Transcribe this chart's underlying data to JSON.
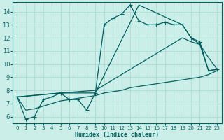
{
  "xlabel": "Humidex (Indice chaleur)",
  "bg_color": "#cceee8",
  "grid_color": "#b0ddd8",
  "line_color": "#006060",
  "xlim": [
    -0.5,
    23.5
  ],
  "ylim": [
    5.5,
    14.7
  ],
  "xticks": [
    0,
    1,
    2,
    3,
    4,
    5,
    6,
    7,
    8,
    9,
    10,
    11,
    12,
    13,
    14,
    15,
    16,
    17,
    18,
    19,
    20,
    21,
    22,
    23
  ],
  "yticks": [
    6,
    7,
    8,
    9,
    10,
    11,
    12,
    13,
    14
  ],
  "series1_x": [
    0,
    1,
    2,
    3,
    4,
    5,
    6,
    7,
    8,
    9,
    10,
    11,
    12,
    13,
    14,
    15,
    16,
    17,
    18,
    19,
    20,
    21,
    22,
    23
  ],
  "series1_y": [
    7.5,
    5.8,
    6.0,
    7.3,
    7.5,
    7.8,
    7.3,
    7.3,
    6.5,
    7.8,
    13.0,
    13.5,
    13.8,
    14.5,
    13.3,
    13.0,
    13.0,
    13.2,
    13.0,
    13.0,
    12.0,
    11.7,
    9.5,
    9.6
  ],
  "series2_x": [
    0,
    5,
    9,
    14,
    19,
    20,
    21,
    22,
    23
  ],
  "series2_y": [
    7.5,
    7.8,
    7.8,
    14.5,
    13.0,
    12.0,
    11.5,
    9.5,
    9.6
  ],
  "series3_x": [
    0,
    5,
    9,
    19,
    20,
    21,
    22,
    23
  ],
  "series3_y": [
    7.5,
    7.8,
    8.0,
    12.0,
    11.7,
    11.5,
    10.5,
    9.6
  ],
  "series4_x": [
    0,
    1,
    2,
    3,
    4,
    5,
    6,
    7,
    8,
    9,
    10,
    11,
    12,
    13,
    14,
    15,
    16,
    17,
    18,
    19,
    20,
    21,
    22,
    23
  ],
  "series4_y": [
    7.5,
    6.5,
    6.6,
    6.8,
    7.0,
    7.2,
    7.3,
    7.4,
    7.5,
    7.6,
    7.8,
    7.9,
    8.0,
    8.2,
    8.3,
    8.4,
    8.5,
    8.6,
    8.7,
    8.8,
    8.9,
    9.0,
    9.2,
    9.5
  ]
}
